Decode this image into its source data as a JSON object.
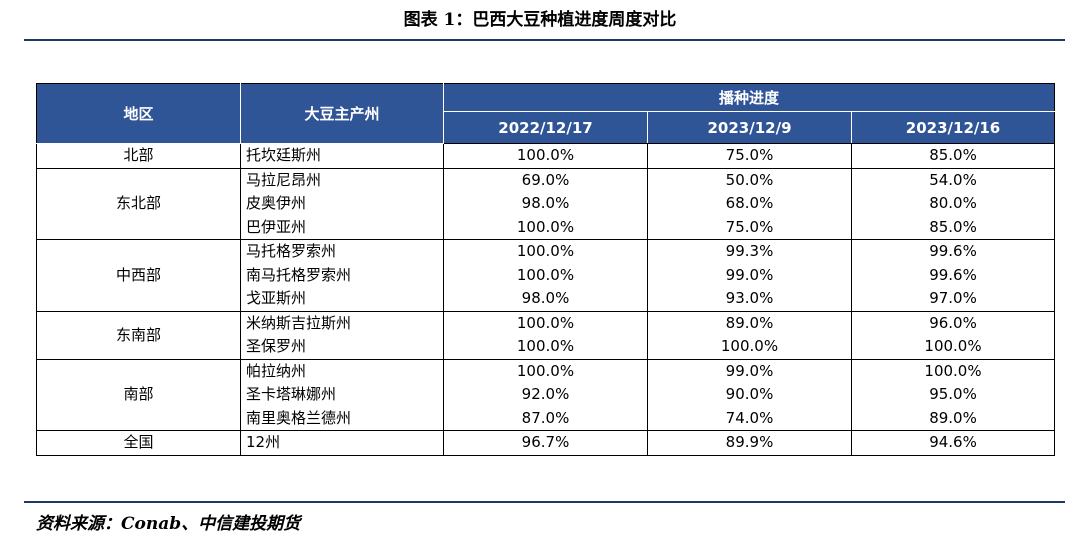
{
  "title": "图表 1：巴西大豆种植进度周度对比",
  "table": {
    "header": {
      "region": "地区",
      "province": "大豆主产州",
      "progress": "播种进度",
      "dates": [
        "2022/12/17",
        "2023/12/9",
        "2023/12/16"
      ]
    },
    "groups": [
      {
        "region": "北部",
        "rows": [
          {
            "province": "托坎廷斯州",
            "values": [
              "100.0%",
              "75.0%",
              "85.0%"
            ]
          }
        ]
      },
      {
        "region": "东北部",
        "rows": [
          {
            "province": "马拉尼昂州",
            "values": [
              "69.0%",
              "50.0%",
              "54.0%"
            ]
          },
          {
            "province": "皮奥伊州",
            "values": [
              "98.0%",
              "68.0%",
              "80.0%"
            ]
          },
          {
            "province": "巴伊亚州",
            "values": [
              "100.0%",
              "75.0%",
              "85.0%"
            ]
          }
        ]
      },
      {
        "region": "中西部",
        "rows": [
          {
            "province": "马托格罗索州",
            "values": [
              "100.0%",
              "99.3%",
              "99.6%"
            ]
          },
          {
            "province": "南马托格罗索州",
            "values": [
              "100.0%",
              "99.0%",
              "99.6%"
            ]
          },
          {
            "province": "戈亚斯州",
            "values": [
              "98.0%",
              "93.0%",
              "97.0%"
            ]
          }
        ]
      },
      {
        "region": "东南部",
        "rows": [
          {
            "province": "米纳斯吉拉斯州",
            "values": [
              "100.0%",
              "89.0%",
              "96.0%"
            ]
          },
          {
            "province": "圣保罗州",
            "values": [
              "100.0%",
              "100.0%",
              "100.0%"
            ]
          }
        ]
      },
      {
        "region": "南部",
        "rows": [
          {
            "province": "帕拉纳州",
            "values": [
              "100.0%",
              "99.0%",
              "100.0%"
            ]
          },
          {
            "province": "圣卡塔琳娜州",
            "values": [
              "92.0%",
              "90.0%",
              "95.0%"
            ]
          },
          {
            "province": "南里奥格兰德州",
            "values": [
              "87.0%",
              "74.0%",
              "89.0%"
            ]
          }
        ]
      },
      {
        "region": "全国",
        "rows": [
          {
            "province": "12州",
            "values": [
              "96.7%",
              "89.9%",
              "94.6%"
            ]
          }
        ]
      }
    ]
  },
  "source": "资料来源：Conab、中信建投期货",
  "colors": {
    "header_bg": "#2f5597",
    "header_text": "#ffffff",
    "rule": "#1f3864"
  }
}
